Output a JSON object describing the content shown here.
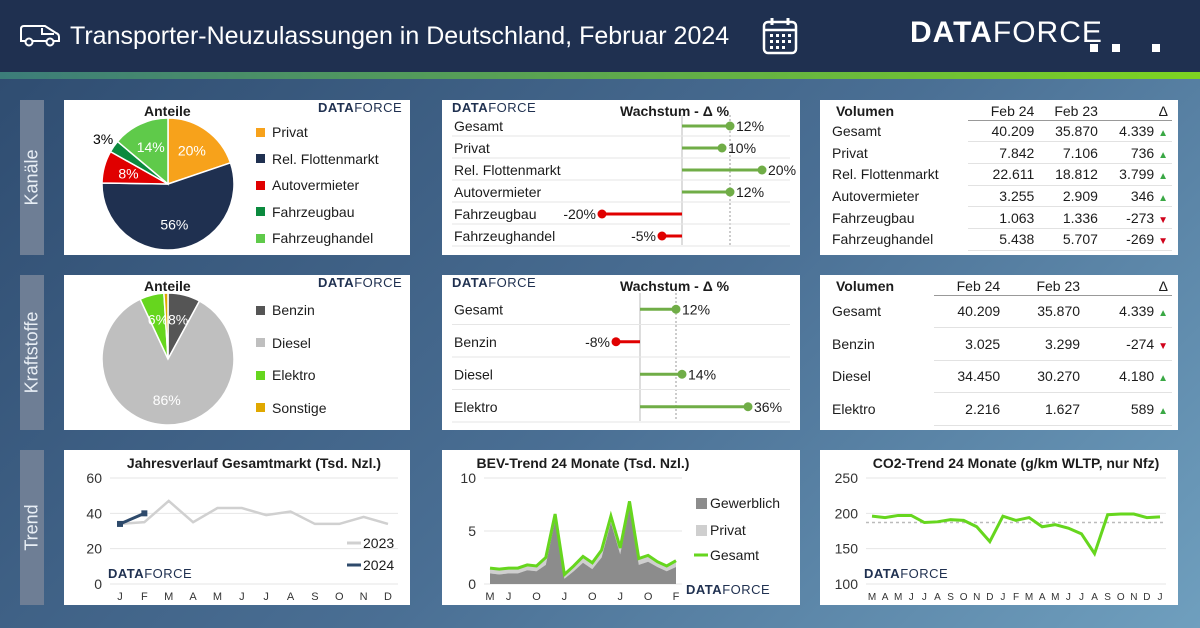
{
  "header": {
    "title": "Transporter-Neuzulassungen in Deutschland, Februar  2024",
    "logo_a": "DATA",
    "logo_b": "FORCE",
    "icons": [
      "van-icon",
      "calendar-icon"
    ]
  },
  "rows": {
    "r1": "Kanäle",
    "r2": "Kraftstoffe",
    "r3": "Trend"
  },
  "brand": {
    "a": "DATA",
    "b": "FORCE"
  },
  "colors": {
    "header": "#1f3050",
    "green": "#70ad47",
    "red": "#e00000",
    "navy": "#1f3050"
  },
  "kanaele": {
    "pie_title": "Anteile",
    "chart_data": {
      "type": "pie",
      "title": "Anteile",
      "categories": [
        "Privat",
        "Rel. Flottenmarkt",
        "Autovermieter",
        "Fahrzeugbau",
        "Fahrzeughandel"
      ],
      "values": [
        20,
        56,
        8,
        3,
        14
      ],
      "labels": [
        "20%",
        "56%",
        "8%",
        "3%",
        "14%"
      ],
      "colors": [
        "#f7a21b",
        "#1f3050",
        "#e00000",
        "#0b8a3e",
        "#5fca4a"
      ]
    },
    "growth_title": "Wachstum - Δ %",
    "growth": {
      "type": "bar",
      "categories": [
        "Gesamt",
        "Privat",
        "Rel. Flottenmarkt",
        "Autovermieter",
        "Fahrzeugbau",
        "Fahrzeughandel"
      ],
      "values": [
        12,
        10,
        20,
        12,
        -20,
        -5
      ],
      "labels": [
        "12%",
        "10%",
        "20%",
        "12%",
        "-20%",
        "-5%"
      ],
      "reference": 12
    },
    "volume": {
      "title": "Volumen",
      "headers": [
        "Feb 24",
        "Feb 23",
        "Δ"
      ],
      "rows": [
        {
          "label": "Gesamt",
          "a": "40.209",
          "b": "35.870",
          "d": "4.339",
          "dir": "up"
        },
        {
          "label": "Privat",
          "a": "7.842",
          "b": "7.106",
          "d": "736",
          "dir": "up"
        },
        {
          "label": "Rel. Flottenmarkt",
          "a": "22.611",
          "b": "18.812",
          "d": "3.799",
          "dir": "up"
        },
        {
          "label": "Autovermieter",
          "a": "3.255",
          "b": "2.909",
          "d": "346",
          "dir": "up"
        },
        {
          "label": "Fahrzeugbau",
          "a": "1.063",
          "b": "1.336",
          "d": "-273",
          "dir": "down"
        },
        {
          "label": "Fahrzeughandel",
          "a": "5.438",
          "b": "5.707",
          "d": "-269",
          "dir": "down"
        }
      ]
    }
  },
  "kraftstoffe": {
    "pie_title": "Anteile",
    "chart_data": {
      "type": "pie",
      "title": "Anteile",
      "categories": [
        "Benzin",
        "Diesel",
        "Elektro",
        "Sonstige"
      ],
      "values": [
        8,
        86,
        6,
        1
      ],
      "labels": [
        "8%",
        "86%",
        "6%",
        ""
      ],
      "colors": [
        "#555555",
        "#bfbfbf",
        "#66d61e",
        "#e0a800"
      ]
    },
    "growth_title": "Wachstum - Δ %",
    "growth": {
      "type": "bar",
      "categories": [
        "Gesamt",
        "Benzin",
        "Diesel",
        "Elektro"
      ],
      "values": [
        12,
        -8,
        14,
        36
      ],
      "labels": [
        "12%",
        "-8%",
        "14%",
        "36%"
      ],
      "reference": 12
    },
    "volume": {
      "title": "Volumen",
      "headers": [
        "Feb 24",
        "Feb 23",
        "Δ"
      ],
      "rows": [
        {
          "label": "Gesamt",
          "a": "40.209",
          "b": "35.870",
          "d": "4.339",
          "dir": "up"
        },
        {
          "label": "Benzin",
          "a": "3.025",
          "b": "3.299",
          "d": "-274",
          "dir": "down"
        },
        {
          "label": "Diesel",
          "a": "34.450",
          "b": "30.270",
          "d": "4.180",
          "dir": "up"
        },
        {
          "label": "Elektro",
          "a": "2.216",
          "b": "1.627",
          "d": "589",
          "dir": "up"
        }
      ]
    }
  },
  "trend": {
    "jahr": {
      "type": "line",
      "title": "Jahresverlauf Gesamtmarkt (Tsd. Nzl.)",
      "categories": [
        "J",
        "F",
        "M",
        "A",
        "M",
        "J",
        "J",
        "A",
        "S",
        "O",
        "N",
        "D"
      ],
      "ylim": [
        0,
        60
      ],
      "yticks": [
        "0",
        "20",
        "40",
        "60"
      ],
      "series": [
        {
          "name": "2023",
          "values": [
            34,
            35,
            47,
            35,
            43,
            43,
            39,
            41,
            34,
            34,
            38,
            34
          ],
          "color": "#d0d0d0"
        },
        {
          "name": "2024",
          "values": [
            34,
            40
          ],
          "color": "#2e4a6b"
        }
      ]
    },
    "bev": {
      "type": "area",
      "title": "BEV-Trend 24 Monate (Tsd. Nzl.)",
      "categories": [
        "M",
        "",
        "J",
        "",
        "",
        "O",
        "",
        "",
        "J",
        "",
        "",
        "O",
        "",
        "",
        "J",
        "",
        "",
        "O",
        "",
        "",
        "F"
      ],
      "ylim": [
        0,
        10
      ],
      "yticks": [
        "0",
        "5",
        "10"
      ],
      "series": [
        {
          "name": "Gewerblich",
          "values": [
            1.0,
            0.9,
            1.0,
            1.0,
            1.3,
            1.2,
            1.8,
            6.0,
            0.5,
            1.2,
            2.0,
            1.4,
            2.5,
            5.8,
            2.8,
            7.2,
            1.8,
            2.1,
            1.6,
            1.2,
            1.6
          ],
          "color": "#8c8c8c"
        },
        {
          "name": "Privat",
          "values": [
            0.5,
            0.5,
            0.5,
            0.5,
            0.5,
            0.5,
            0.7,
            0.6,
            0.4,
            0.5,
            0.6,
            0.6,
            0.7,
            0.6,
            0.6,
            0.6,
            0.6,
            0.6,
            0.5,
            0.5,
            0.6
          ],
          "color": "#cfcfcf"
        },
        {
          "name": "Gesamt",
          "values": [
            1.5,
            1.4,
            1.5,
            1.5,
            1.8,
            1.7,
            2.5,
            6.6,
            0.9,
            1.7,
            2.6,
            2.0,
            3.2,
            6.4,
            3.4,
            7.8,
            2.4,
            2.7,
            2.1,
            1.7,
            2.2
          ],
          "color": "#66d61e"
        }
      ]
    },
    "co2": {
      "type": "line",
      "title": "CO2-Trend 24 Monate (g/km WLTP, nur Nfz)",
      "categories": [
        "M",
        "A",
        "M",
        "J",
        "J",
        "A",
        "S",
        "O",
        "N",
        "D",
        "J",
        "F",
        "M",
        "A",
        "M",
        "J",
        "J",
        "A",
        "S",
        "O",
        "N",
        "D",
        "J"
      ],
      "ylim": [
        100,
        250
      ],
      "yticks": [
        "100",
        "150",
        "200",
        "250"
      ],
      "series": [
        {
          "name": "CO2",
          "values": [
            196,
            194,
            197,
            197,
            187,
            188,
            191,
            190,
            181,
            160,
            196,
            190,
            194,
            181,
            184,
            179,
            171,
            143,
            198,
            199,
            199,
            194,
            195
          ],
          "color": "#66d61e"
        }
      ],
      "reference": 187
    }
  }
}
